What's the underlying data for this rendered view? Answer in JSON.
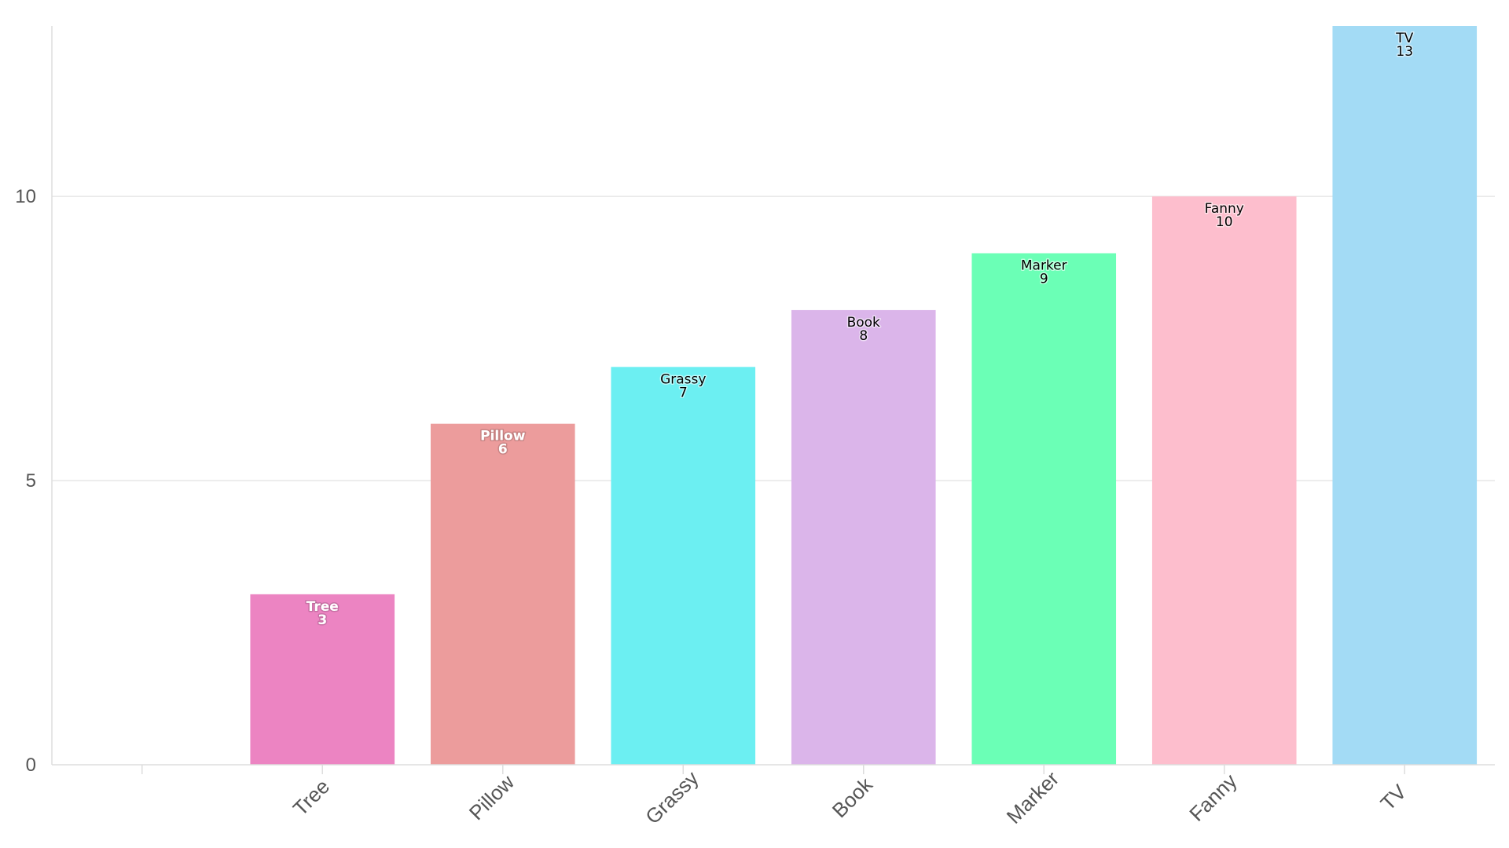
{
  "chart_data": {
    "type": "bar",
    "categories": [
      "",
      "Tree",
      "Pillow",
      "Grassy",
      "Book",
      "Marker",
      "Fanny",
      "TV"
    ],
    "values": [
      null,
      3,
      6,
      7,
      8,
      9,
      10,
      13
    ],
    "colors": [
      "",
      "#ec84c2",
      "#ec9c9c",
      "#6ceff2",
      "#dbb5ea",
      "#6bffb6",
      "#fdbecd",
      "#a3dbf5"
    ],
    "label_colors": [
      "",
      "#ffffff",
      "#ffffff",
      "#000000",
      "#000000",
      "#000000",
      "#000000",
      "#000000"
    ],
    "title": "",
    "xlabel": "",
    "ylabel": "",
    "ylim": [
      0,
      13
    ],
    "yticks": [
      0,
      5,
      10
    ],
    "grid": "horizontal",
    "legend": "none"
  }
}
